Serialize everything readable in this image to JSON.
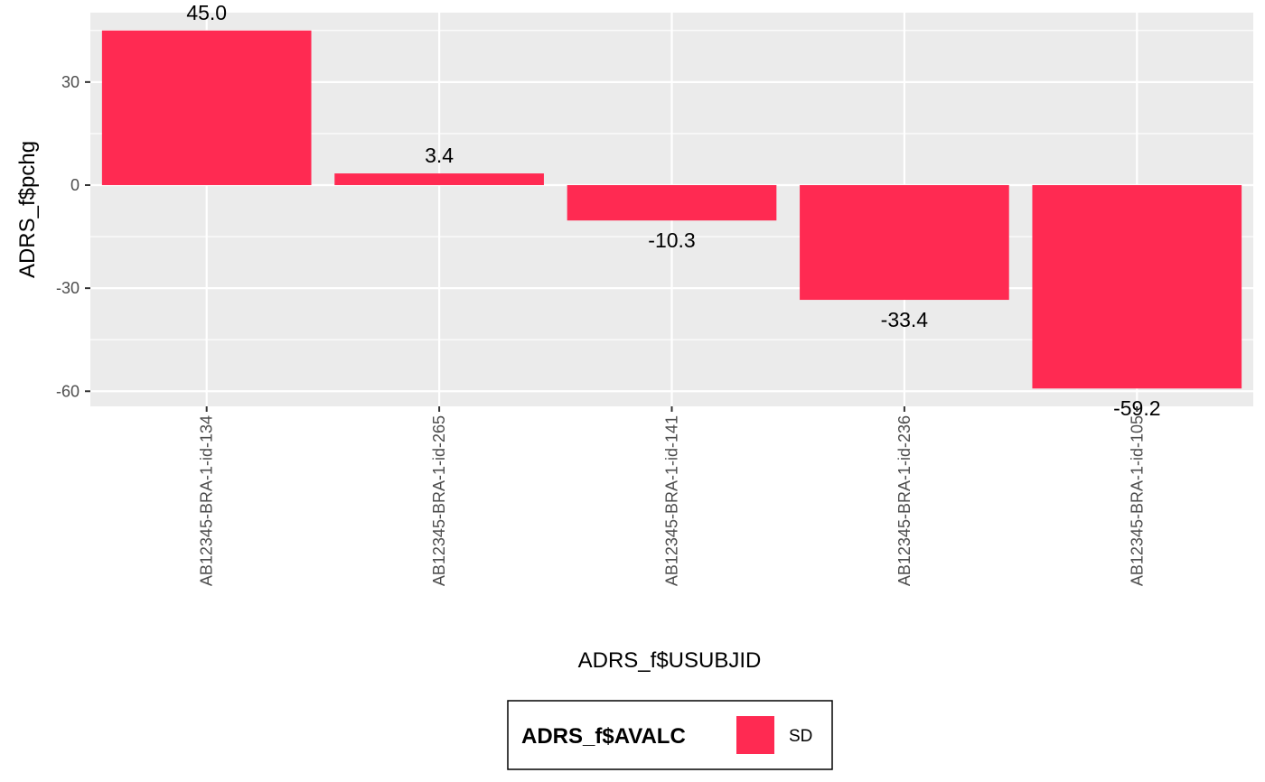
{
  "chart_data": {
    "type": "bar",
    "categories": [
      "AB12345-BRA-1-id-134",
      "AB12345-BRA-1-id-265",
      "AB12345-BRA-1-id-141",
      "AB12345-BRA-1-id-236",
      "AB12345-BRA-1-id-105"
    ],
    "series": [
      {
        "name": "SD",
        "values": [
          45.0,
          3.4,
          -10.3,
          -33.4,
          -59.2
        ],
        "color": "#FF2A52"
      }
    ],
    "data_labels": [
      "45.0",
      "3.4",
      "-10.3",
      "-33.4",
      "-59.2"
    ],
    "xlabel": "ADRS_f$USUBJID",
    "ylabel": "ADRS_f$pchg",
    "y_ticks": [
      30,
      0,
      -30,
      -60
    ],
    "ylim": [
      -64.4,
      50.2
    ],
    "grid": true,
    "panel_background": "#EBEBEB",
    "legend": {
      "title": "ADRS_f$AVALC",
      "position": "bottom",
      "entries": [
        "SD"
      ]
    }
  }
}
